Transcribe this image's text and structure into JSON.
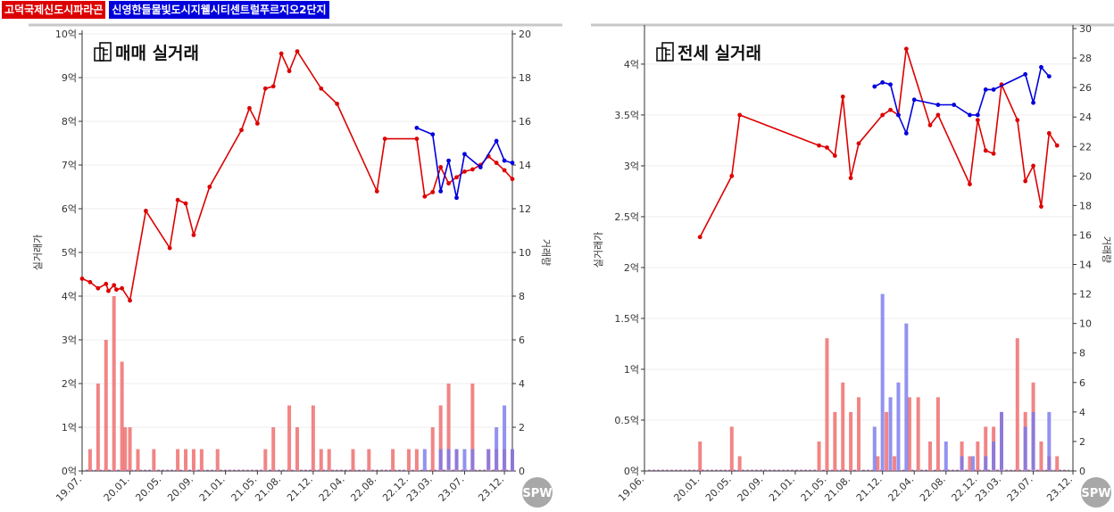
{
  "legend": [
    {
      "name": "고덕국제신도시파라곤",
      "color": "#dd0000"
    },
    {
      "name": "신영한들물빛도시지웰시티센트럴푸르지오2단지",
      "color": "#0000dd"
    }
  ],
  "watermark": "SPW",
  "chart_data": [
    {
      "type": "line",
      "title": "매매 실거래",
      "ylabel": "실거래가",
      "y2label": "거래량",
      "ylim": [
        0,
        10
      ],
      "y2lim": [
        0,
        20
      ],
      "yticks": [
        "0억",
        "1억",
        "2억",
        "3억",
        "4억",
        "5억",
        "6억",
        "7억",
        "8억",
        "9억",
        "10억"
      ],
      "y2ticks": [
        "0",
        "2",
        "4",
        "6",
        "8",
        "10",
        "12",
        "14",
        "16",
        "18",
        "20"
      ],
      "xlim": [
        0,
        54
      ],
      "xticks": [
        {
          "v": 0,
          "label": "19.07."
        },
        {
          "v": 6,
          "label": "20.01."
        },
        {
          "v": 10,
          "label": "20.05."
        },
        {
          "v": 14,
          "label": "20.09."
        },
        {
          "v": 18,
          "label": "21.01."
        },
        {
          "v": 22,
          "label": "21.05."
        },
        {
          "v": 25,
          "label": "21.08."
        },
        {
          "v": 29,
          "label": "21.12."
        },
        {
          "v": 33,
          "label": "22.04."
        },
        {
          "v": 37,
          "label": "22.08."
        },
        {
          "v": 41,
          "label": "22.12."
        },
        {
          "v": 44,
          "label": "23.03."
        },
        {
          "v": 48,
          "label": "23.07."
        },
        {
          "v": 53,
          "label": "23.12."
        }
      ],
      "series": [
        {
          "name": "고덕국제신도시파라곤",
          "color": "#dd0000",
          "points": [
            [
              0,
              4.4
            ],
            [
              1,
              4.32
            ],
            [
              2,
              4.18
            ],
            [
              3,
              4.28
            ],
            [
              3.3,
              4.12
            ],
            [
              4,
              4.25
            ],
            [
              4.3,
              4.15
            ],
            [
              5,
              4.18
            ],
            [
              6,
              3.9
            ],
            [
              8,
              5.95
            ],
            [
              11,
              5.1
            ],
            [
              12,
              6.2
            ],
            [
              13,
              6.12
            ],
            [
              14,
              5.4
            ],
            [
              16,
              6.5
            ],
            [
              20,
              7.8
            ],
            [
              21,
              8.3
            ],
            [
              22,
              7.95
            ],
            [
              23,
              8.75
            ],
            [
              24,
              8.8
            ],
            [
              25,
              9.55
            ],
            [
              26,
              9.15
            ],
            [
              27,
              9.6
            ],
            [
              30,
              8.75
            ],
            [
              32,
              8.4
            ],
            [
              37,
              6.4
            ],
            [
              38,
              7.6
            ],
            [
              42,
              7.6
            ],
            [
              43,
              6.28
            ],
            [
              44,
              6.38
            ],
            [
              45,
              6.95
            ],
            [
              46,
              6.58
            ],
            [
              47,
              6.72
            ],
            [
              48,
              6.85
            ],
            [
              49,
              6.9
            ],
            [
              50,
              7.0
            ],
            [
              51,
              7.2
            ],
            [
              52,
              7.05
            ],
            [
              53,
              6.88
            ],
            [
              54,
              6.68
            ]
          ]
        },
        {
          "name": "신영한들물빛도시지웰시티센트럴푸르지오2단지",
          "color": "#0000dd",
          "points": [
            [
              42,
              7.85
            ],
            [
              44,
              7.7
            ],
            [
              45,
              6.4
            ],
            [
              46,
              7.1
            ],
            [
              47,
              6.25
            ],
            [
              48,
              7.25
            ],
            [
              50,
              6.95
            ],
            [
              52,
              7.55
            ],
            [
              53,
              7.1
            ],
            [
              54,
              7.05
            ]
          ]
        }
      ],
      "volume": [
        {
          "name": "고덕국제신도시파라곤",
          "color": "#ee6666",
          "bars": [
            [
              1,
              1
            ],
            [
              2,
              4
            ],
            [
              3,
              6
            ],
            [
              4,
              8
            ],
            [
              5,
              5
            ],
            [
              5.4,
              2
            ],
            [
              6,
              2
            ],
            [
              7,
              1
            ],
            [
              9,
              1
            ],
            [
              12,
              1
            ],
            [
              13,
              1
            ],
            [
              14,
              1
            ],
            [
              15,
              1
            ],
            [
              17,
              1
            ],
            [
              23,
              1
            ],
            [
              24,
              2
            ],
            [
              26,
              3
            ],
            [
              27,
              2
            ],
            [
              29,
              3
            ],
            [
              30,
              1
            ],
            [
              31,
              1
            ],
            [
              34,
              1
            ],
            [
              36,
              1
            ],
            [
              39,
              1
            ],
            [
              41,
              1
            ],
            [
              42,
              1
            ],
            [
              44,
              2
            ],
            [
              45,
              3
            ],
            [
              46,
              4
            ],
            [
              47,
              1
            ],
            [
              49,
              4
            ],
            [
              51,
              1
            ],
            [
              52,
              1
            ],
            [
              53,
              1
            ],
            [
              54,
              1
            ]
          ]
        },
        {
          "name": "신영한들물빛도시지웰시티센트럴푸르지오2단지",
          "color": "#7777ee",
          "bars": [
            [
              43,
              1
            ],
            [
              45,
              1
            ],
            [
              46,
              1
            ],
            [
              47,
              1
            ],
            [
              48,
              1
            ],
            [
              49,
              1
            ],
            [
              51,
              1
            ],
            [
              52,
              2
            ],
            [
              53,
              3
            ],
            [
              54,
              1
            ]
          ]
        }
      ]
    },
    {
      "type": "line",
      "title": "전세 실거래",
      "ylabel": "실거래가",
      "y2label": "거래량",
      "ylim": [
        0,
        4.35
      ],
      "y2lim": [
        0,
        30
      ],
      "yticks": [
        "0억",
        "0.5억",
        "1억",
        "1.5억",
        "2억",
        "2.5억",
        "3억",
        "3.5억",
        "4억"
      ],
      "ytick_values": [
        0,
        0.5,
        1,
        1.5,
        2,
        2.5,
        3,
        3.5,
        4
      ],
      "y2ticks": [
        "0",
        "2",
        "4",
        "6",
        "8",
        "10",
        "12",
        "14",
        "16",
        "18",
        "20",
        "22",
        "24",
        "26",
        "28",
        "30"
      ],
      "xlim": [
        0,
        54
      ],
      "xticks": [
        {
          "v": 0,
          "label": "19.06."
        },
        {
          "v": 7,
          "label": "20.01."
        },
        {
          "v": 11,
          "label": "20.05."
        },
        {
          "v": 15,
          "label": "20.09."
        },
        {
          "v": 19,
          "label": "21.01."
        },
        {
          "v": 23,
          "label": "21.05."
        },
        {
          "v": 26,
          "label": "21.08."
        },
        {
          "v": 30,
          "label": "21.12."
        },
        {
          "v": 34,
          "label": "22.04."
        },
        {
          "v": 38,
          "label": "22.08."
        },
        {
          "v": 42,
          "label": "22.12."
        },
        {
          "v": 45,
          "label": "23.03."
        },
        {
          "v": 49,
          "label": "23.07."
        },
        {
          "v": 54,
          "label": "23.12."
        }
      ],
      "series": [
        {
          "name": "고덕국제신도시파라곤",
          "color": "#dd0000",
          "points": [
            [
              7,
              2.3
            ],
            [
              11,
              2.9
            ],
            [
              12,
              3.5
            ],
            [
              22,
              3.2
            ],
            [
              23,
              3.18
            ],
            [
              24,
              3.1
            ],
            [
              25,
              3.68
            ],
            [
              26,
              2.88
            ],
            [
              27,
              3.22
            ],
            [
              30,
              3.5
            ],
            [
              31,
              3.55
            ],
            [
              32,
              3.5
            ],
            [
              33,
              4.15
            ],
            [
              36,
              3.4
            ],
            [
              37,
              3.5
            ],
            [
              41,
              2.82
            ],
            [
              42,
              3.45
            ],
            [
              43,
              3.15
            ],
            [
              44,
              3.12
            ],
            [
              45,
              3.8
            ],
            [
              47,
              3.45
            ],
            [
              48,
              2.85
            ],
            [
              49,
              3.0
            ],
            [
              50,
              2.6
            ],
            [
              51,
              3.32
            ],
            [
              52,
              3.2
            ]
          ]
        },
        {
          "name": "신영한들물빛도시지웰시티센트럴푸르지오2단지",
          "color": "#0000dd",
          "points": [
            [
              29,
              3.78
            ],
            [
              30,
              3.82
            ],
            [
              31,
              3.8
            ],
            [
              32,
              3.5
            ],
            [
              33,
              3.32
            ],
            [
              34,
              3.65
            ],
            [
              37,
              3.6
            ],
            [
              39,
              3.6
            ],
            [
              41,
              3.5
            ],
            [
              42,
              3.5
            ],
            [
              43,
              3.75
            ],
            [
              44,
              3.75
            ],
            [
              48,
              3.9
            ],
            [
              49,
              3.62
            ],
            [
              50,
              3.97
            ],
            [
              51,
              3.88
            ]
          ]
        }
      ],
      "volume": [
        {
          "name": "고덕국제신도시파라곤",
          "color": "#ee6666",
          "bars": [
            [
              7,
              2
            ],
            [
              11,
              3
            ],
            [
              12,
              1
            ],
            [
              22,
              2
            ],
            [
              23,
              9
            ],
            [
              24,
              4
            ],
            [
              25,
              6
            ],
            [
              26,
              4
            ],
            [
              27,
              5
            ],
            [
              29.4,
              1
            ],
            [
              30.5,
              4
            ],
            [
              31.5,
              1
            ],
            [
              33.4,
              5
            ],
            [
              34.5,
              5
            ],
            [
              36,
              2
            ],
            [
              37,
              5
            ],
            [
              40,
              2
            ],
            [
              41,
              1
            ],
            [
              42,
              2
            ],
            [
              43,
              3
            ],
            [
              44,
              3
            ],
            [
              45,
              4
            ],
            [
              47,
              9
            ],
            [
              48,
              4
            ],
            [
              49,
              6
            ],
            [
              50,
              2
            ],
            [
              51,
              1
            ],
            [
              52,
              1
            ]
          ]
        },
        {
          "name": "신영한들물빛도시지웰시티센트럴푸르지오2단지",
          "color": "#7777ee",
          "bars": [
            [
              29,
              3
            ],
            [
              30,
              12
            ],
            [
              31,
              5
            ],
            [
              32,
              6
            ],
            [
              33,
              10
            ],
            [
              38,
              2
            ],
            [
              40,
              1
            ],
            [
              41.4,
              1
            ],
            [
              43,
              1
            ],
            [
              44,
              2
            ],
            [
              45,
              4
            ],
            [
              48,
              3
            ],
            [
              49,
              4
            ],
            [
              51,
              4
            ]
          ]
        }
      ]
    }
  ]
}
